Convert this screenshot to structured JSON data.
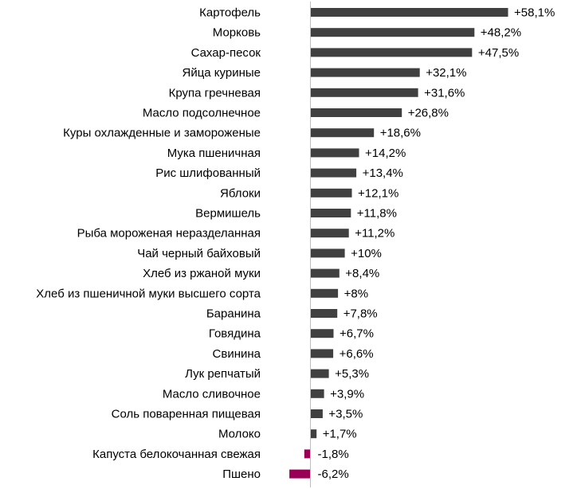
{
  "chart_data": {
    "type": "bar",
    "orientation": "horizontal",
    "title": "",
    "xlabel": "",
    "ylabel": "",
    "categories": [
      "Картофель",
      "Морковь",
      "Сахар-песок",
      "Яйца куриные",
      "Крупа гречневая",
      "Масло подсолнечное",
      "Куры охлажденные и замороженые",
      "Мука пшеничная",
      "Рис шлифованный",
      "Яблоки",
      "Вермишель",
      "Рыба мороженая неразделанная",
      "Чай черный байховый",
      "Хлеб из ржаной муки",
      "Хлеб из пшеничной муки высшего сорта",
      "Баранина",
      "Говядина",
      "Свинина",
      "Лук репчатый",
      "Масло сливочное",
      "Соль поваренная пищевая",
      "Молоко",
      "Капуста белокочанная свежая",
      "Пшено"
    ],
    "values": [
      58.1,
      48.2,
      47.5,
      32.1,
      31.6,
      26.8,
      18.6,
      14.2,
      13.4,
      12.1,
      11.8,
      11.2,
      10,
      8.4,
      8,
      7.8,
      6.7,
      6.6,
      5.3,
      3.9,
      3.5,
      1.7,
      -1.8,
      -6.2
    ],
    "value_labels": [
      "+58,1%",
      "+48,2%",
      "+47,5%",
      "+32,1%",
      "+31,6%",
      "+26,8%",
      "+18,6%",
      "+14,2%",
      "+13,4%",
      "+12,1%",
      "+11,8%",
      "+11,2%",
      "+10%",
      "+8,4%",
      "+8%",
      "+7,8%",
      "+6,7%",
      "+6,6%",
      "+5,3%",
      "+3,9%",
      "+3,5%",
      "+1,7%",
      "-1,8%",
      "-6,2%"
    ],
    "unit": "%",
    "grid": false,
    "colors": {
      "positive": "#404040",
      "negative": "#990055",
      "axis": "#bfbfbf"
    }
  }
}
